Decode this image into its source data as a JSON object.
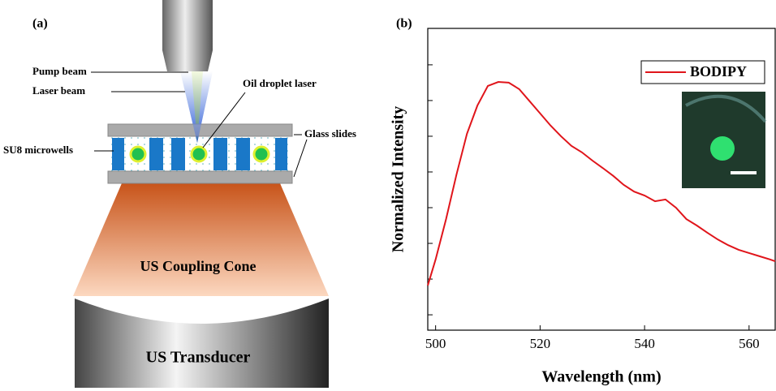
{
  "panel_a": {
    "label": "(a)",
    "pump_beam": "Pump beam",
    "laser_beam": "Laser beam",
    "oil_droplet": "Oil droplet laser",
    "glass_slides": "Glass slides",
    "microwells": "SU8 microwells",
    "cone": "US Coupling Cone",
    "transducer": "US Transducer"
  },
  "chart_data": {
    "type": "line",
    "label": "(b)",
    "x_label": "Wavelength (nm)",
    "y_label": "Normalized Intensity",
    "x": [
      498.5,
      500,
      502,
      504,
      506,
      508,
      510,
      512,
      514,
      516,
      518,
      520,
      522,
      524,
      526,
      528,
      530,
      532,
      534,
      536,
      538,
      540,
      542,
      544,
      546,
      548,
      550,
      552,
      554,
      556,
      558,
      560,
      562,
      564,
      565
    ],
    "series": [
      {
        "name": "BODIPY",
        "color": "#e0151b",
        "values": [
          0.282,
          0.355,
          0.468,
          0.593,
          0.707,
          0.786,
          0.841,
          0.852,
          0.85,
          0.832,
          0.798,
          0.764,
          0.73,
          0.7,
          0.673,
          0.655,
          0.632,
          0.611,
          0.589,
          0.564,
          0.545,
          0.534,
          0.518,
          0.523,
          0.5,
          0.468,
          0.45,
          0.43,
          0.411,
          0.395,
          0.382,
          0.373,
          0.364,
          0.355,
          0.35
        ]
      }
    ],
    "xlim": [
      498.5,
      565
    ],
    "xticks": [
      500,
      520,
      540,
      560
    ],
    "ylim": [
      0.157,
      1.002
    ],
    "yticks": [
      0.2,
      0.3,
      0.4,
      0.5,
      0.6,
      0.7,
      0.8,
      0.9
    ],
    "y_tick_labels": false,
    "legend": "upper right"
  }
}
